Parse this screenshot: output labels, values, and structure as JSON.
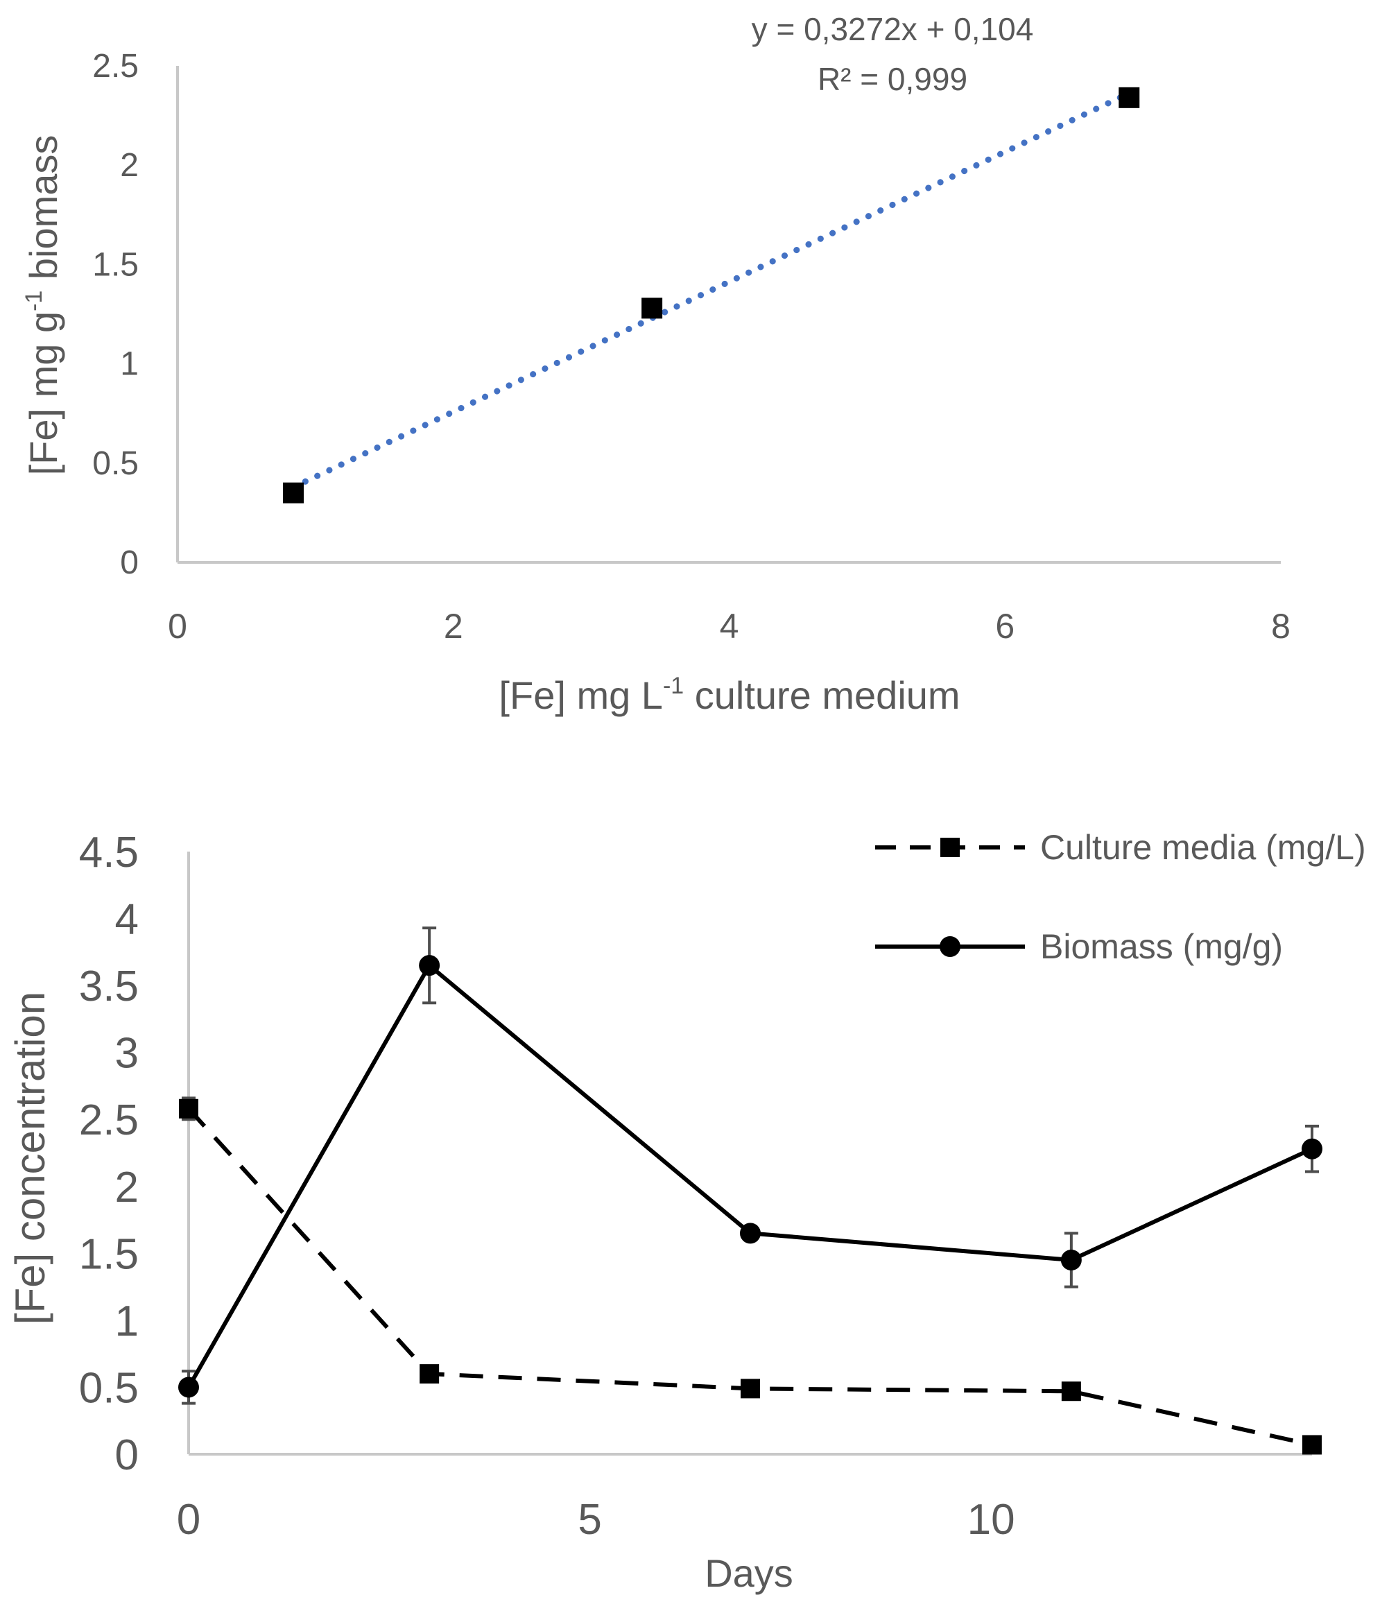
{
  "chart_data": [
    {
      "type": "scatter",
      "title": "",
      "xlabel": "[Fe] mg L",
      "xlabel_sup": "-1",
      "xlabel_tail": " culture medium",
      "ylabel": "[Fe] mg g",
      "ylabel_sup": "-1",
      "ylabel_tail": " biomass",
      "xlim": [
        0,
        8
      ],
      "ylim": [
        0,
        2.5
      ],
      "xticks": [
        "0",
        "2",
        "4",
        "6",
        "8"
      ],
      "yticks": [
        "0",
        "0.5",
        "1",
        "1.5",
        "2",
        "2.5"
      ],
      "grid": false,
      "series": [
        {
          "name": "",
          "marker": "square",
          "color": "#000000",
          "x": [
            0.84,
            3.44,
            6.9
          ],
          "y": [
            0.35,
            1.28,
            2.34
          ]
        }
      ],
      "trendline": {
        "style": "dotted",
        "color": "#4472C4",
        "slope": 0.3272,
        "intercept": 0.104,
        "x_range": [
          0.84,
          6.9
        ],
        "equation_text": "y = 0,3272x + 0,104",
        "r2_text": "R² = 0,999"
      }
    },
    {
      "type": "line",
      "title": "",
      "xlabel": "Days",
      "ylabel": "[Fe] concentration",
      "xlim": [
        0,
        14
      ],
      "ylim": [
        0,
        4.5
      ],
      "xticks": [
        "0",
        "5",
        "10"
      ],
      "yticks": [
        "0",
        "0.5",
        "1",
        "1.5",
        "2",
        "2.5",
        "3",
        "3.5",
        "4",
        "4.5"
      ],
      "grid": false,
      "legend_position": "top-right",
      "series": [
        {
          "name": "Culture media (mg/L)",
          "style": "dashed",
          "marker": "square",
          "color": "#000000",
          "x": [
            0,
            3,
            7,
            11,
            14
          ],
          "y": [
            2.58,
            0.6,
            0.49,
            0.47,
            0.07
          ],
          "error": [
            0.08,
            0.05,
            0.04,
            0.05,
            0.03
          ]
        },
        {
          "name": "Biomass (mg/g)",
          "style": "solid",
          "marker": "circle",
          "color": "#000000",
          "x": [
            0,
            3,
            7,
            11,
            14
          ],
          "y": [
            0.5,
            3.65,
            1.65,
            1.45,
            2.28
          ],
          "error": [
            0.12,
            0.28,
            0.05,
            0.2,
            0.17
          ]
        }
      ]
    }
  ]
}
